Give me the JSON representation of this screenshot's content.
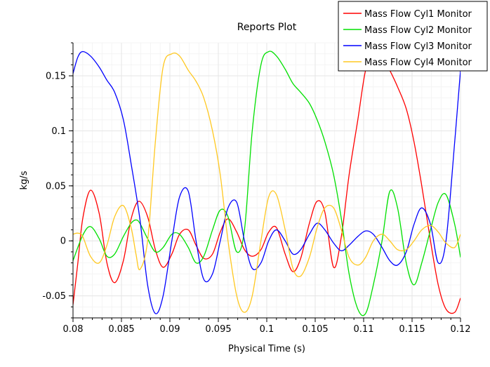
{
  "chart_data": {
    "type": "line",
    "title": "Reports Plot",
    "xlabel": "Physical Time (s)",
    "ylabel": "kg/s",
    "xlim": [
      0.08,
      0.12
    ],
    "ylim": [
      -0.07,
      0.18
    ],
    "x_ticks": [
      0.08,
      0.085,
      0.09,
      0.095,
      0.1,
      0.105,
      0.11,
      0.115,
      0.12
    ],
    "x_tick_labels": [
      "0.08",
      "0.085",
      "0.09",
      "0.095",
      "0.1",
      "0.105",
      "0.11",
      "0.115",
      "0.12"
    ],
    "y_ticks": [
      -0.05,
      0,
      0.05,
      0.1,
      0.15
    ],
    "y_tick_labels": [
      "-0.05",
      "0",
      "0.05",
      "0.1",
      "0.15"
    ],
    "grid": true,
    "legend_position": "top-right",
    "series": [
      {
        "name": "Mass Flow Cyl1 Monitor",
        "color": "#ff0000",
        "x": [
          0.08,
          0.0805,
          0.081,
          0.0818,
          0.0827,
          0.0835,
          0.0843,
          0.0852,
          0.086,
          0.0868,
          0.0877,
          0.0885,
          0.0893,
          0.0902,
          0.091,
          0.0919,
          0.0927,
          0.0935,
          0.0944,
          0.0952,
          0.096,
          0.0969,
          0.0977,
          0.0985,
          0.0994,
          0.1002,
          0.101,
          0.1019,
          0.1027,
          0.1035,
          0.1044,
          0.1052,
          0.106,
          0.1069,
          0.1077,
          0.1085,
          0.1094,
          0.1102,
          0.111,
          0.1115,
          0.1119,
          0.1127,
          0.1135,
          0.1144,
          0.1152,
          0.116,
          0.1169,
          0.1177,
          0.1185,
          0.1194,
          0.12
        ],
        "y": [
          -0.058,
          -0.02,
          0.02,
          0.046,
          0.025,
          -0.02,
          -0.038,
          -0.018,
          0.02,
          0.036,
          0.022,
          -0.008,
          -0.024,
          -0.012,
          0.006,
          0.01,
          -0.004,
          -0.016,
          -0.012,
          0.008,
          0.02,
          0.008,
          -0.008,
          -0.014,
          -0.008,
          0.008,
          0.012,
          -0.012,
          -0.028,
          -0.016,
          0.016,
          0.036,
          0.026,
          -0.024,
          0.004,
          0.06,
          0.11,
          0.155,
          0.17,
          0.172,
          0.168,
          0.155,
          0.14,
          0.12,
          0.09,
          0.05,
          0.0,
          -0.04,
          -0.062,
          -0.065,
          -0.052
        ]
      },
      {
        "name": "Mass Flow Cyl2 Monitor",
        "color": "#00e000",
        "x": [
          0.08,
          0.081,
          0.0818,
          0.0827,
          0.0835,
          0.0843,
          0.0852,
          0.086,
          0.0865,
          0.0869,
          0.0877,
          0.0885,
          0.0893,
          0.0902,
          0.091,
          0.0919,
          0.0927,
          0.0935,
          0.0944,
          0.0952,
          0.096,
          0.0969,
          0.0977,
          0.0985,
          0.0994,
          0.1002,
          0.101,
          0.1019,
          0.1027,
          0.1035,
          0.1044,
          0.1052,
          0.106,
          0.1069,
          0.1077,
          0.1085,
          0.1094,
          0.1102,
          0.111,
          0.1119,
          0.1127,
          0.1135,
          0.1144,
          0.1152,
          0.116,
          0.1169,
          0.1177,
          0.1185,
          0.1194,
          0.12
        ],
        "y": [
          -0.018,
          0.005,
          0.013,
          0.002,
          -0.014,
          -0.012,
          0.004,
          0.016,
          0.019,
          0.016,
          0.002,
          -0.01,
          -0.006,
          0.006,
          0.006,
          -0.006,
          -0.02,
          -0.014,
          0.01,
          0.028,
          0.022,
          -0.01,
          0.01,
          0.1,
          0.16,
          0.172,
          0.168,
          0.156,
          0.143,
          0.135,
          0.125,
          0.11,
          0.09,
          0.06,
          0.02,
          -0.03,
          -0.062,
          -0.066,
          -0.04,
          0.0,
          0.045,
          0.03,
          -0.02,
          -0.04,
          -0.02,
          0.01,
          0.035,
          0.042,
          0.015,
          -0.015
        ]
      },
      {
        "name": "Mass Flow Cyl3 Monitor",
        "color": "#0000ff",
        "x": [
          0.08,
          0.0805,
          0.081,
          0.0818,
          0.0827,
          0.0835,
          0.0843,
          0.0852,
          0.086,
          0.0869,
          0.0877,
          0.0885,
          0.0893,
          0.0902,
          0.091,
          0.0919,
          0.0927,
          0.0935,
          0.0944,
          0.0952,
          0.096,
          0.0969,
          0.0977,
          0.0985,
          0.0994,
          0.1002,
          0.101,
          0.1019,
          0.1027,
          0.1035,
          0.1044,
          0.1052,
          0.106,
          0.1069,
          0.1077,
          0.1085,
          0.1094,
          0.1102,
          0.111,
          0.1119,
          0.1127,
          0.1135,
          0.1144,
          0.1152,
          0.116,
          0.1169,
          0.1177,
          0.1185,
          0.1194,
          0.12
        ],
        "y": [
          0.152,
          0.167,
          0.172,
          0.168,
          0.158,
          0.146,
          0.135,
          0.11,
          0.07,
          0.02,
          -0.04,
          -0.066,
          -0.05,
          0.0,
          0.04,
          0.045,
          0.0,
          -0.035,
          -0.03,
          0.0,
          0.03,
          0.035,
          0.0,
          -0.025,
          -0.02,
          0.0,
          0.01,
          0.0,
          -0.012,
          -0.008,
          0.006,
          0.016,
          0.01,
          -0.002,
          -0.009,
          -0.004,
          0.004,
          0.009,
          0.006,
          -0.006,
          -0.018,
          -0.022,
          -0.01,
          0.015,
          0.03,
          0.015,
          -0.02,
          0.0,
          0.09,
          0.155
        ]
      },
      {
        "name": "Mass Flow Cyl4 Monitor",
        "color": "#ffc820",
        "x": [
          0.08,
          0.0805,
          0.081,
          0.0818,
          0.0827,
          0.0835,
          0.0843,
          0.0852,
          0.086,
          0.0865,
          0.0869,
          0.0877,
          0.0885,
          0.0893,
          0.0902,
          0.091,
          0.0919,
          0.0927,
          0.0935,
          0.0944,
          0.0952,
          0.096,
          0.0969,
          0.0977,
          0.0985,
          0.0994,
          0.1002,
          0.101,
          0.1019,
          0.1027,
          0.1035,
          0.1044,
          0.1052,
          0.106,
          0.1069,
          0.1077,
          0.1085,
          0.1094,
          0.1102,
          0.111,
          0.1119,
          0.1127,
          0.1135,
          0.1144,
          0.1152,
          0.116,
          0.1169,
          0.1177,
          0.1185,
          0.1194,
          0.12
        ],
        "y": [
          0.006,
          0.007,
          0.004,
          -0.014,
          -0.02,
          -0.004,
          0.022,
          0.032,
          0.012,
          -0.012,
          -0.026,
          0.0,
          0.09,
          0.158,
          0.17,
          0.168,
          0.155,
          0.145,
          0.13,
          0.1,
          0.06,
          0.0,
          -0.05,
          -0.065,
          -0.05,
          0.0,
          0.04,
          0.042,
          0.01,
          -0.025,
          -0.032,
          -0.015,
          0.012,
          0.03,
          0.03,
          0.01,
          -0.015,
          -0.022,
          -0.015,
          0.0,
          0.006,
          0.0,
          -0.008,
          -0.008,
          0.0,
          0.01,
          0.014,
          0.008,
          -0.002,
          -0.006,
          0.006
        ]
      }
    ]
  }
}
